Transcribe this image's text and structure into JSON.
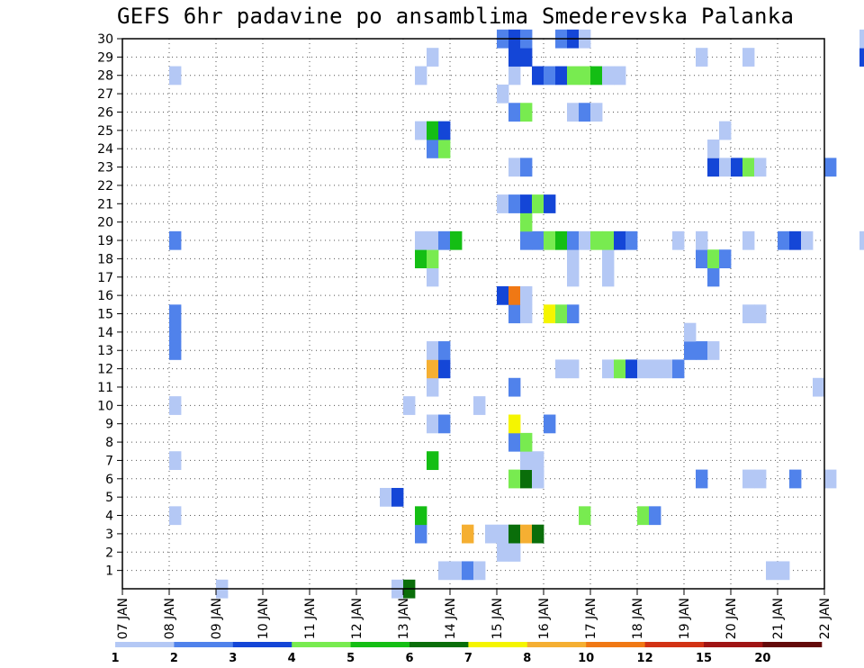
{
  "chart_data": {
    "type": "heatmap",
    "title": "GEFS 6hr padavine po ansamblima Smederevska Palanka",
    "x_tick_labels": [
      "07 JAN",
      "08 JAN",
      "09 JAN",
      "10 JAN",
      "11 JAN",
      "12 JAN",
      "13 JAN",
      "14 JAN",
      "15 JAN",
      "16 JAN",
      "17 JAN",
      "18 JAN",
      "19 JAN",
      "20 JAN",
      "21 JAN",
      "22 JAN"
    ],
    "y_tick_labels": [
      "1",
      "2",
      "3",
      "4",
      "5",
      "6",
      "7",
      "8",
      "9",
      "10",
      "11",
      "12",
      "13",
      "14",
      "15",
      "16",
      "17",
      "18",
      "19",
      "20",
      "21",
      "22",
      "23",
      "24",
      "25",
      "26",
      "27",
      "28",
      "29",
      "30"
    ],
    "ylim": [
      0,
      30
    ],
    "step_hours": 6,
    "grid": "dotted",
    "legend": {
      "position": "bottom",
      "thresholds": [
        "1",
        "2",
        "3",
        "4",
        "5",
        "6",
        "7",
        "8",
        "10",
        "12",
        "15",
        "20"
      ],
      "colors": [
        "#b4c8f5",
        "#5082eb",
        "#1446d7",
        "#78eb50",
        "#14be14",
        "#0a6e0a",
        "#f5f500",
        "#f5af32",
        "#f07814",
        "#d23214",
        "#a01414",
        "#640a0a"
      ]
    },
    "cells": [
      {
        "m": 0,
        "t": 8,
        "c": 1
      },
      {
        "m": 0,
        "t": 23,
        "c": 1
      },
      {
        "m": 0,
        "t": 24,
        "c": 6
      },
      {
        "m": 1,
        "t": 27,
        "c": 1
      },
      {
        "m": 1,
        "t": 28,
        "c": 1
      },
      {
        "m": 1,
        "t": 29,
        "c": 2
      },
      {
        "m": 1,
        "t": 30,
        "c": 1
      },
      {
        "m": 1,
        "t": 55,
        "c": 1
      },
      {
        "m": 1,
        "t": 56,
        "c": 1
      },
      {
        "m": 2,
        "t": 32,
        "c": 1
      },
      {
        "m": 2,
        "t": 33,
        "c": 1
      },
      {
        "m": 3,
        "t": 25,
        "c": 2
      },
      {
        "m": 3,
        "t": 29,
        "c": 8
      },
      {
        "m": 3,
        "t": 31,
        "c": 1
      },
      {
        "m": 3,
        "t": 32,
        "c": 1
      },
      {
        "m": 3,
        "t": 33,
        "c": 6
      },
      {
        "m": 3,
        "t": 34,
        "c": 8
      },
      {
        "m": 3,
        "t": 35,
        "c": 6
      },
      {
        "m": 4,
        "t": 4,
        "c": 1
      },
      {
        "m": 4,
        "t": 25,
        "c": 5
      },
      {
        "m": 4,
        "t": 39,
        "c": 4
      },
      {
        "m": 4,
        "t": 44,
        "c": 4
      },
      {
        "m": 4,
        "t": 45,
        "c": 2
      },
      {
        "m": 5,
        "t": 22,
        "c": 1
      },
      {
        "m": 5,
        "t": 23,
        "c": 3
      },
      {
        "m": 6,
        "t": 33,
        "c": 4
      },
      {
        "m": 6,
        "t": 34,
        "c": 6
      },
      {
        "m": 6,
        "t": 35,
        "c": 1
      },
      {
        "m": 6,
        "t": 35,
        "c": 1
      },
      {
        "m": 6,
        "t": 49,
        "c": 2
      },
      {
        "m": 6,
        "t": 53,
        "c": 1
      },
      {
        "m": 6,
        "t": 54,
        "c": 1
      },
      {
        "m": 6,
        "t": 57,
        "c": 2
      },
      {
        "m": 6,
        "t": 60,
        "c": 1
      },
      {
        "m": 7,
        "t": 4,
        "c": 1
      },
      {
        "m": 7,
        "t": 26,
        "c": 5
      },
      {
        "m": 7,
        "t": 34,
        "c": 1
      },
      {
        "m": 7,
        "t": 35,
        "c": 1
      },
      {
        "m": 8,
        "t": 33,
        "c": 2
      },
      {
        "m": 8,
        "t": 34,
        "c": 4
      },
      {
        "m": 9,
        "t": 26,
        "c": 1
      },
      {
        "m": 9,
        "t": 27,
        "c": 2
      },
      {
        "m": 9,
        "t": 33,
        "c": 7
      },
      {
        "m": 9,
        "t": 36,
        "c": 2
      },
      {
        "m": 10,
        "t": 4,
        "c": 1
      },
      {
        "m": 10,
        "t": 24,
        "c": 1
      },
      {
        "m": 10,
        "t": 30,
        "c": 1
      },
      {
        "m": 11,
        "t": 26,
        "c": 1
      },
      {
        "m": 11,
        "t": 33,
        "c": 2
      },
      {
        "m": 11,
        "t": 59,
        "c": 1
      },
      {
        "m": 12,
        "t": 26,
        "c": 8
      },
      {
        "m": 12,
        "t": 27,
        "c": 3
      },
      {
        "m": 12,
        "t": 37,
        "c": 1
      },
      {
        "m": 12,
        "t": 38,
        "c": 1
      },
      {
        "m": 12,
        "t": 41,
        "c": 1
      },
      {
        "m": 12,
        "t": 42,
        "c": 4
      },
      {
        "m": 12,
        "t": 43,
        "c": 3
      },
      {
        "m": 12,
        "t": 44,
        "c": 1
      },
      {
        "m": 12,
        "t": 45,
        "c": 1
      },
      {
        "m": 12,
        "t": 46,
        "c": 1
      },
      {
        "m": 12,
        "t": 47,
        "c": 2
      },
      {
        "m": 13,
        "t": 4,
        "c": 2
      },
      {
        "m": 13,
        "t": 26,
        "c": 1
      },
      {
        "m": 13,
        "t": 27,
        "c": 2
      },
      {
        "m": 13,
        "t": 48,
        "c": 2
      },
      {
        "m": 13,
        "t": 49,
        "c": 2
      },
      {
        "m": 13,
        "t": 50,
        "c": 1
      },
      {
        "m": 14,
        "t": 4,
        "c": 2
      },
      {
        "m": 14,
        "t": 48,
        "c": 1
      },
      {
        "m": 15,
        "t": 4,
        "c": 2
      },
      {
        "m": 15,
        "t": 33,
        "c": 2
      },
      {
        "m": 15,
        "t": 34,
        "c": 1
      },
      {
        "m": 15,
        "t": 36,
        "c": 7
      },
      {
        "m": 15,
        "t": 37,
        "c": 4
      },
      {
        "m": 15,
        "t": 38,
        "c": 2
      },
      {
        "m": 15,
        "t": 53,
        "c": 1
      },
      {
        "m": 15,
        "t": 54,
        "c": 1
      },
      {
        "m": 16,
        "t": 32,
        "c": 3
      },
      {
        "m": 16,
        "t": 33,
        "c": 9
      },
      {
        "m": 16,
        "t": 34,
        "c": 1
      },
      {
        "m": 17,
        "t": 26,
        "c": 1
      },
      {
        "m": 17,
        "t": 38,
        "c": 1
      },
      {
        "m": 17,
        "t": 41,
        "c": 1
      },
      {
        "m": 17,
        "t": 50,
        "c": 2
      },
      {
        "m": 18,
        "t": 25,
        "c": 5
      },
      {
        "m": 18,
        "t": 26,
        "c": 4
      },
      {
        "m": 18,
        "t": 38,
        "c": 1
      },
      {
        "m": 18,
        "t": 41,
        "c": 1
      },
      {
        "m": 18,
        "t": 49,
        "c": 2
      },
      {
        "m": 18,
        "t": 50,
        "c": 4
      },
      {
        "m": 18,
        "t": 51,
        "c": 2
      },
      {
        "m": 19,
        "t": 4,
        "c": 2
      },
      {
        "m": 19,
        "t": 25,
        "c": 1
      },
      {
        "m": 19,
        "t": 26,
        "c": 1
      },
      {
        "m": 19,
        "t": 27,
        "c": 2
      },
      {
        "m": 19,
        "t": 28,
        "c": 5
      },
      {
        "m": 19,
        "t": 34,
        "c": 2
      },
      {
        "m": 19,
        "t": 35,
        "c": 2
      },
      {
        "m": 19,
        "t": 36,
        "c": 4
      },
      {
        "m": 19,
        "t": 37,
        "c": 5
      },
      {
        "m": 19,
        "t": 38,
        "c": 2
      },
      {
        "m": 19,
        "t": 39,
        "c": 1
      },
      {
        "m": 19,
        "t": 40,
        "c": 4
      },
      {
        "m": 19,
        "t": 41,
        "c": 4
      },
      {
        "m": 19,
        "t": 42,
        "c": 3
      },
      {
        "m": 19,
        "t": 43,
        "c": 2
      },
      {
        "m": 19,
        "t": 47,
        "c": 1
      },
      {
        "m": 19,
        "t": 49,
        "c": 1
      },
      {
        "m": 19,
        "t": 53,
        "c": 1
      },
      {
        "m": 19,
        "t": 56,
        "c": 2
      },
      {
        "m": 19,
        "t": 57,
        "c": 3
      },
      {
        "m": 19,
        "t": 58,
        "c": 1
      },
      {
        "m": 19,
        "t": 63,
        "c": 1
      },
      {
        "m": 20,
        "t": 34,
        "c": 4
      },
      {
        "m": 21,
        "t": 32,
        "c": 1
      },
      {
        "m": 21,
        "t": 33,
        "c": 2
      },
      {
        "m": 21,
        "t": 34,
        "c": 3
      },
      {
        "m": 21,
        "t": 35,
        "c": 4
      },
      {
        "m": 21,
        "t": 36,
        "c": 3
      },
      {
        "m": 23,
        "t": 33,
        "c": 1
      },
      {
        "m": 23,
        "t": 34,
        "c": 2
      },
      {
        "m": 23,
        "t": 50,
        "c": 3
      },
      {
        "m": 23,
        "t": 51,
        "c": 1
      },
      {
        "m": 23,
        "t": 52,
        "c": 3
      },
      {
        "m": 23,
        "t": 53,
        "c": 4
      },
      {
        "m": 23,
        "t": 54,
        "c": 1
      },
      {
        "m": 23,
        "t": 60,
        "c": 2
      },
      {
        "m": 24,
        "t": 26,
        "c": 2
      },
      {
        "m": 24,
        "t": 27,
        "c": 4
      },
      {
        "m": 24,
        "t": 50,
        "c": 1
      },
      {
        "m": 25,
        "t": 25,
        "c": 1
      },
      {
        "m": 25,
        "t": 26,
        "c": 5
      },
      {
        "m": 25,
        "t": 27,
        "c": 3
      },
      {
        "m": 25,
        "t": 51,
        "c": 1
      },
      {
        "m": 25,
        "t": 64,
        "c": 1
      },
      {
        "m": 26,
        "t": 33,
        "c": 2
      },
      {
        "m": 26,
        "t": 34,
        "c": 4
      },
      {
        "m": 26,
        "t": 38,
        "c": 1
      },
      {
        "m": 26,
        "t": 39,
        "c": 2
      },
      {
        "m": 26,
        "t": 40,
        "c": 1
      },
      {
        "m": 27,
        "t": 32,
        "c": 1
      },
      {
        "m": 28,
        "t": 4,
        "c": 1
      },
      {
        "m": 28,
        "t": 25,
        "c": 1
      },
      {
        "m": 28,
        "t": 33,
        "c": 1
      },
      {
        "m": 28,
        "t": 35,
        "c": 3
      },
      {
        "m": 28,
        "t": 36,
        "c": 2
      },
      {
        "m": 28,
        "t": 37,
        "c": 3
      },
      {
        "m": 28,
        "t": 38,
        "c": 4
      },
      {
        "m": 28,
        "t": 39,
        "c": 4
      },
      {
        "m": 28,
        "t": 40,
        "c": 5
      },
      {
        "m": 28,
        "t": 41,
        "c": 1
      },
      {
        "m": 28,
        "t": 42,
        "c": 1
      },
      {
        "m": 29,
        "t": 26,
        "c": 1
      },
      {
        "m": 29,
        "t": 33,
        "c": 3
      },
      {
        "m": 29,
        "t": 34,
        "c": 3
      },
      {
        "m": 29,
        "t": 49,
        "c": 1
      },
      {
        "m": 29,
        "t": 53,
        "c": 1
      },
      {
        "m": 29,
        "t": 63,
        "c": 3
      },
      {
        "m": 30,
        "t": 32,
        "c": 2
      },
      {
        "m": 30,
        "t": 33,
        "c": 3
      },
      {
        "m": 30,
        "t": 34,
        "c": 2
      },
      {
        "m": 30,
        "t": 37,
        "c": 2
      },
      {
        "m": 30,
        "t": 38,
        "c": 3
      },
      {
        "m": 30,
        "t": 39,
        "c": 1
      },
      {
        "m": 30,
        "t": 63,
        "c": 1
      },
      {
        "m": 30,
        "t": 64,
        "c": 1
      }
    ]
  }
}
